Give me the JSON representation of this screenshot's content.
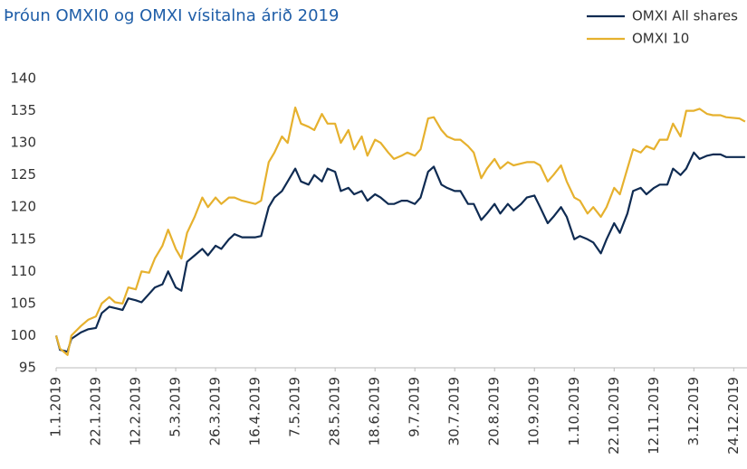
{
  "chart_data": {
    "type": "line",
    "title": "Þróun OMXI0 og OMXI vísitalna árið 2019",
    "x": [
      "2019-01-01",
      "2019-01-03",
      "2019-01-07",
      "2019-01-09",
      "2019-01-14",
      "2019-01-18",
      "2019-01-22",
      "2019-01-25",
      "2019-01-29",
      "2019-02-01",
      "2019-02-05",
      "2019-02-08",
      "2019-02-12",
      "2019-02-15",
      "2019-02-19",
      "2019-02-22",
      "2019-02-26",
      "2019-03-01",
      "2019-03-05",
      "2019-03-08",
      "2019-03-11",
      "2019-03-15",
      "2019-03-19",
      "2019-03-22",
      "2019-03-26",
      "2019-03-29",
      "2019-04-02",
      "2019-04-05",
      "2019-04-09",
      "2019-04-16",
      "2019-04-19",
      "2019-04-23",
      "2019-04-26",
      "2019-04-30",
      "2019-05-03",
      "2019-05-07",
      "2019-05-10",
      "2019-05-14",
      "2019-05-17",
      "2019-05-21",
      "2019-05-24",
      "2019-05-28",
      "2019-05-31",
      "2019-06-04",
      "2019-06-07",
      "2019-06-11",
      "2019-06-14",
      "2019-06-18",
      "2019-06-21",
      "2019-06-25",
      "2019-06-28",
      "2019-07-02",
      "2019-07-05",
      "2019-07-09",
      "2019-07-12",
      "2019-07-16",
      "2019-07-19",
      "2019-07-23",
      "2019-07-26",
      "2019-07-30",
      "2019-08-02",
      "2019-08-06",
      "2019-08-09",
      "2019-08-13",
      "2019-08-16",
      "2019-08-20",
      "2019-08-23",
      "2019-08-27",
      "2019-08-30",
      "2019-09-03",
      "2019-09-06",
      "2019-09-10",
      "2019-09-13",
      "2019-09-17",
      "2019-09-20",
      "2019-09-24",
      "2019-09-27",
      "2019-10-01",
      "2019-10-04",
      "2019-10-08",
      "2019-10-11",
      "2019-10-15",
      "2019-10-18",
      "2019-10-22",
      "2019-10-25",
      "2019-10-29",
      "2019-11-01",
      "2019-11-05",
      "2019-11-08",
      "2019-11-12",
      "2019-11-15",
      "2019-11-19",
      "2019-11-22",
      "2019-11-26",
      "2019-11-29",
      "2019-12-03",
      "2019-12-06",
      "2019-12-10",
      "2019-12-13",
      "2019-12-17",
      "2019-12-20",
      "2019-12-27",
      "2019-12-30"
    ],
    "series": [
      {
        "name": "OMXI All shares",
        "color": "#0f2b52",
        "values": [
          100,
          97.8,
          97.5,
          99.5,
          100.5,
          101,
          101.2,
          103.5,
          104.5,
          104.3,
          104,
          105.8,
          105.5,
          105.2,
          106.5,
          107.5,
          108,
          110,
          107.5,
          107,
          111.5,
          112.5,
          113.5,
          112.5,
          114,
          113.5,
          115,
          115.8,
          115.3,
          115.3,
          115.5,
          120,
          121.5,
          122.5,
          124,
          126,
          124,
          123.5,
          125,
          124,
          126,
          125.5,
          122.5,
          123,
          122,
          122.5,
          121,
          122,
          121.5,
          120.5,
          120.5,
          121,
          121,
          120.5,
          121.5,
          125.5,
          126.3,
          123.5,
          123,
          122.5,
          122.5,
          120.5,
          120.5,
          118,
          119,
          120.5,
          119,
          120.5,
          119.5,
          120.5,
          121.5,
          121.8,
          120,
          117.5,
          118.5,
          120,
          118.5,
          115,
          115.5,
          115,
          114.5,
          112.8,
          115,
          117.5,
          116,
          119,
          122.5,
          123,
          122,
          123,
          123.5,
          123.5,
          126,
          125,
          126,
          128.5,
          127.5,
          128,
          128.2,
          128.2,
          127.8,
          127.8,
          127.8
        ]
      },
      {
        "name": "OMXI 10",
        "color": "#e6b12e",
        "values": [
          100,
          98,
          97,
          100,
          101.5,
          102.5,
          103,
          105,
          106,
          105.2,
          105,
          107.5,
          107.2,
          110,
          109.8,
          112,
          114,
          116.5,
          113.5,
          112,
          116,
          118.5,
          121.5,
          120,
          121.5,
          120.5,
          121.5,
          121.5,
          121,
          120.5,
          121,
          127,
          128.5,
          131,
          130,
          135.5,
          133,
          132.5,
          132,
          134.5,
          133,
          133,
          130,
          132,
          129,
          131,
          128,
          130.5,
          130,
          128.5,
          127.5,
          128,
          128.5,
          128,
          129,
          133.8,
          134,
          132,
          131,
          130.5,
          130.5,
          129.5,
          128.5,
          124.5,
          126,
          127.5,
          126,
          127,
          126.5,
          126.8,
          127,
          127,
          126.5,
          124,
          125,
          126.5,
          124,
          121.5,
          121,
          119,
          120,
          118.5,
          120,
          123,
          122,
          126,
          129,
          128.5,
          129.5,
          129,
          130.5,
          130.5,
          133,
          131,
          135,
          135,
          135.3,
          134.5,
          134.3,
          134.3,
          134,
          133.8,
          133.3
        ]
      }
    ],
    "xlim": [
      "2019-01-01",
      "2019-12-31"
    ],
    "xticks": [
      {
        "value": "2019-01-01",
        "label": "1.1.2019"
      },
      {
        "value": "2019-01-22",
        "label": "22.1.2019"
      },
      {
        "value": "2019-02-12",
        "label": "12.2.2019"
      },
      {
        "value": "2019-03-05",
        "label": "5.3.2019"
      },
      {
        "value": "2019-03-26",
        "label": "26.3.2019"
      },
      {
        "value": "2019-04-16",
        "label": "16.4.2019"
      },
      {
        "value": "2019-05-07",
        "label": "7.5.2019"
      },
      {
        "value": "2019-05-28",
        "label": "28.5.2019"
      },
      {
        "value": "2019-06-18",
        "label": "18.6.2019"
      },
      {
        "value": "2019-07-09",
        "label": "9.7.2019"
      },
      {
        "value": "2019-07-30",
        "label": "30.7.2019"
      },
      {
        "value": "2019-08-20",
        "label": "20.8.2019"
      },
      {
        "value": "2019-09-10",
        "label": "10.9.2019"
      },
      {
        "value": "2019-10-01",
        "label": "1.10.2019"
      },
      {
        "value": "2019-10-22",
        "label": "22.10.2019"
      },
      {
        "value": "2019-11-12",
        "label": "12.11.2019"
      },
      {
        "value": "2019-12-03",
        "label": "3.12.2019"
      },
      {
        "value": "2019-12-24",
        "label": "24.12.2019"
      }
    ],
    "ylim": [
      95,
      140
    ],
    "yticks": [
      95,
      100,
      105,
      110,
      115,
      120,
      125,
      130,
      135,
      140
    ],
    "legend": "top-right",
    "grid": false
  }
}
